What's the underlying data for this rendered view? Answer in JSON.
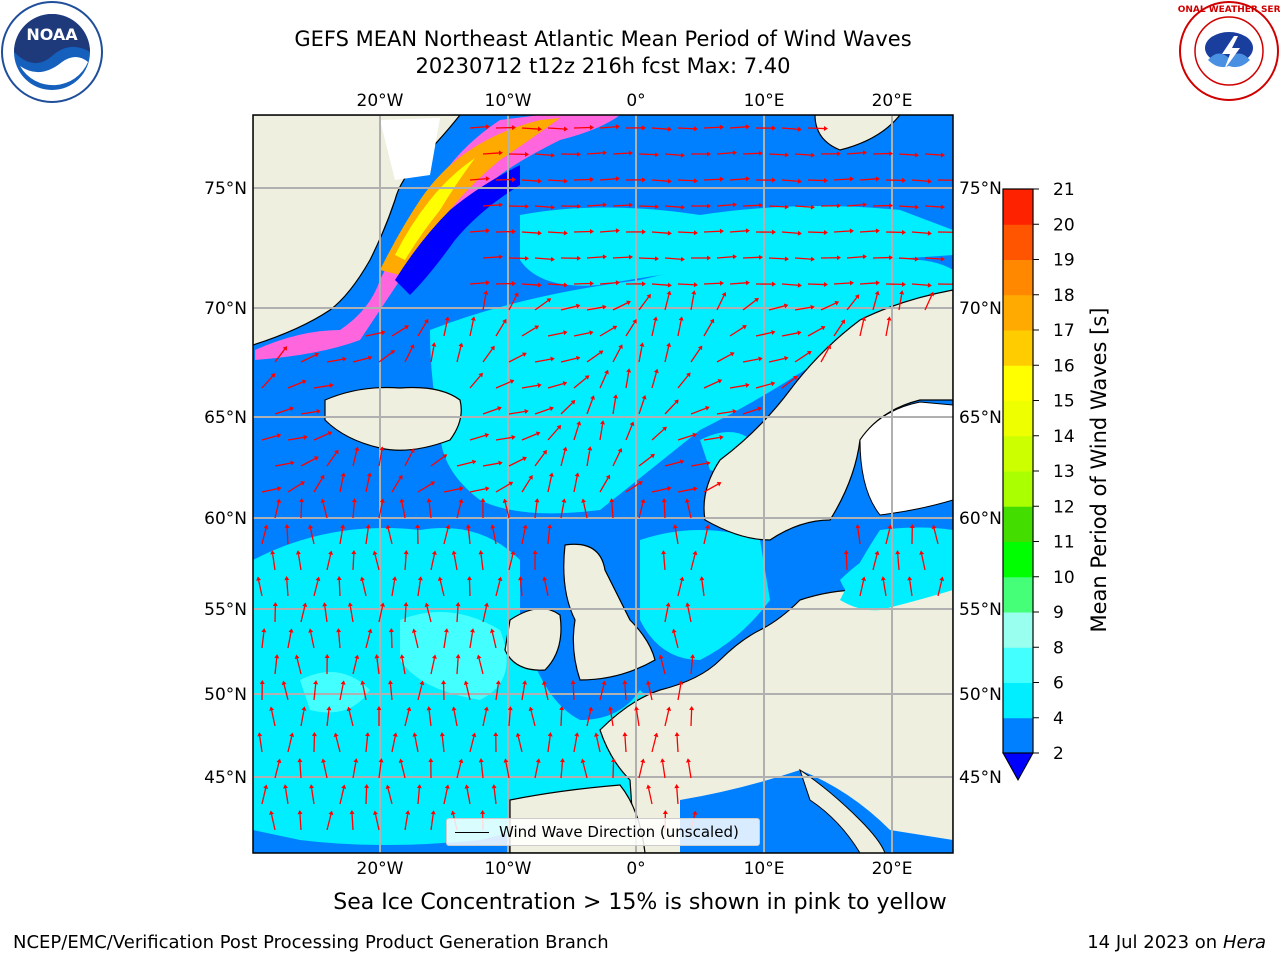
{
  "title": {
    "line1": "GEFS MEAN Northeast Atlantic Mean Period of Wind Waves",
    "line2": "20230712 t12z 216h fcst   Max: 7.40"
  },
  "logos": {
    "left": {
      "icon": "noaa-logo-icon",
      "text": "NOAA",
      "ring_text": "NATIONAL OCEANIC AND ATMOSPHERIC ADMINISTRATION · U.S. DEPARTMENT OF COMMERCE"
    },
    "right": {
      "icon": "nws-logo-icon",
      "ring_text": "NATIONAL WEATHER SERVICE"
    }
  },
  "map": {
    "lon_ticks": [
      "20°W",
      "10°W",
      "0°",
      "10°E",
      "20°E"
    ],
    "lat_ticks": [
      "75°N",
      "70°N",
      "65°N",
      "60°N",
      "55°N",
      "50°N",
      "45°N"
    ],
    "legend_label": "Wind Wave Direction (unscaled)",
    "colors": {
      "land": "#efefdf",
      "arrow": "#ff0000",
      "ice": "#ff00ff"
    }
  },
  "colorbar": {
    "label": "Mean Period of Wind Waves [s]",
    "ticks": [
      "2",
      "4",
      "6",
      "8",
      "9",
      "10",
      "11",
      "12",
      "13",
      "14",
      "15",
      "16",
      "17",
      "18",
      "19",
      "20",
      "21"
    ],
    "colors": [
      "#0080ff",
      "#00eeff",
      "#44ffff",
      "#99ffee",
      "#44ff77",
      "#00ff00",
      "#44dd00",
      "#aaff00",
      "#ccff00",
      "#eeff00",
      "#ffff00",
      "#ffcc00",
      "#ffaa00",
      "#ff8800",
      "#ff5500",
      "#ff2200"
    ],
    "extend_color": "#0000ff"
  },
  "bottom_note": "Sea Ice Concentration > 15% is shown in pink to yellow",
  "footer": {
    "left": "NCEP/EMC/Verification Post Processing Product Generation Branch",
    "right_prefix": "14 Jul 2023 on ",
    "right_italic": "Hera"
  }
}
